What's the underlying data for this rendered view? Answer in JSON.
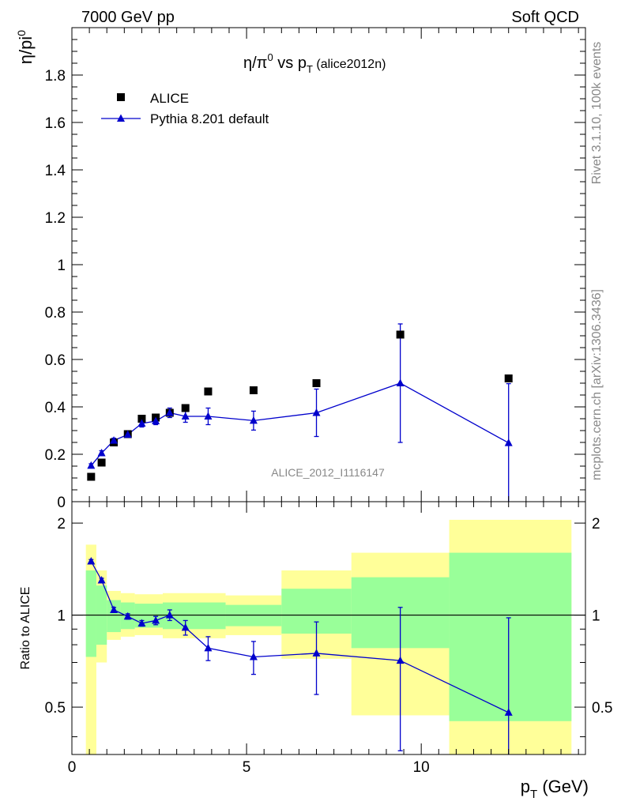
{
  "header": {
    "left": "7000 GeV pp",
    "right": "Soft QCD"
  },
  "side_text": {
    "rivet": "Rivet 3.1.10,  100k events",
    "mcplots": "mcplots.cern.ch [arXiv:1306.3436]"
  },
  "colors": {
    "data": "#000000",
    "mc": "#0000cc",
    "band_inner": "#99ff99",
    "band_outer": "#ffff99"
  },
  "chart_data": [
    {
      "type": "scatter",
      "title": {
        "main_a": "η/π",
        "sup": "0",
        "main_b": " vs p",
        "sub": "T",
        "tag": " (alice2012n)"
      },
      "watermark": "ALICE_2012_I1116147",
      "ylabel": {
        "base": "η/pi",
        "sup": "0"
      },
      "xlim": [
        0,
        14.7
      ],
      "ylim": [
        0,
        2.0
      ],
      "yticks": [
        0,
        0.2,
        0.4,
        0.6,
        0.8,
        1,
        1.2,
        1.4,
        1.6,
        1.8
      ],
      "ytick_labels": [
        "0",
        "0.2",
        "0.4",
        "0.6",
        "0.8",
        "1",
        "1.2",
        "1.4",
        "1.6",
        "1.8"
      ],
      "legend": {
        "placement": "top-left",
        "data_label": "ALICE",
        "mc_label": "Pythia 8.201 default"
      },
      "series": [
        {
          "name": "ALICE",
          "marker": "square",
          "x": [
            0.55,
            0.85,
            1.2,
            1.6,
            2.0,
            2.4,
            2.8,
            3.25,
            3.9,
            5.2,
            7.0,
            9.4,
            12.5
          ],
          "y": [
            0.105,
            0.165,
            0.25,
            0.285,
            0.35,
            0.355,
            0.375,
            0.395,
            0.465,
            0.47,
            0.5,
            0.705,
            0.52
          ]
        },
        {
          "name": "Pythia 8.201 default",
          "marker": "triangle",
          "x": [
            0.55,
            0.85,
            1.2,
            1.6,
            2.0,
            2.4,
            2.8,
            3.25,
            3.9,
            5.2,
            7.0,
            9.4,
            12.5
          ],
          "y": [
            0.152,
            0.205,
            0.258,
            0.283,
            0.33,
            0.34,
            0.375,
            0.36,
            0.36,
            0.342,
            0.375,
            0.5,
            0.248
          ],
          "yerr": [
            0.008,
            0.01,
            0.01,
            0.012,
            0.015,
            0.015,
            0.02,
            0.025,
            0.035,
            0.04,
            0.1,
            0.25,
            0.25
          ]
        }
      ]
    },
    {
      "type": "area",
      "ylabel": "Ratio to ALICE",
      "xlabel": {
        "base": "p",
        "sub": "T",
        "unit": " (GeV)"
      },
      "xlim": [
        0,
        14.7
      ],
      "ylim": [
        0.35,
        2.35
      ],
      "xticks": [
        0,
        5,
        10
      ],
      "xtick_labels": [
        "0",
        "5",
        "10"
      ],
      "yticks": [
        0.5,
        1,
        2
      ],
      "ytick_labels": [
        "0.5",
        "1",
        "2"
      ],
      "bands": [
        {
          "x0": 0.4,
          "x1": 0.7,
          "in_lo": 0.73,
          "in_hi": 1.4,
          "out_lo": 0.35,
          "out_hi": 1.7
        },
        {
          "x0": 0.7,
          "x1": 1.0,
          "in_lo": 0.8,
          "in_hi": 1.25,
          "out_lo": 0.7,
          "out_hi": 1.4
        },
        {
          "x0": 1.0,
          "x1": 1.4,
          "in_lo": 0.88,
          "in_hi": 1.12,
          "out_lo": 0.83,
          "out_hi": 1.2
        },
        {
          "x0": 1.4,
          "x1": 1.8,
          "in_lo": 0.9,
          "in_hi": 1.1,
          "out_lo": 0.85,
          "out_hi": 1.18
        },
        {
          "x0": 1.8,
          "x1": 2.6,
          "in_lo": 0.91,
          "in_hi": 1.09,
          "out_lo": 0.86,
          "out_hi": 1.17
        },
        {
          "x0": 2.6,
          "x1": 4.4,
          "in_lo": 0.9,
          "in_hi": 1.1,
          "out_lo": 0.84,
          "out_hi": 1.18
        },
        {
          "x0": 4.4,
          "x1": 6.0,
          "in_lo": 0.92,
          "in_hi": 1.08,
          "out_lo": 0.86,
          "out_hi": 1.16
        },
        {
          "x0": 6.0,
          "x1": 8.0,
          "in_lo": 0.87,
          "in_hi": 1.22,
          "out_lo": 0.72,
          "out_hi": 1.4
        },
        {
          "x0": 8.0,
          "x1": 10.8,
          "in_lo": 0.78,
          "in_hi": 1.33,
          "out_lo": 0.47,
          "out_hi": 1.6
        },
        {
          "x0": 10.8,
          "x1": 14.3,
          "in_lo": 0.45,
          "in_hi": 1.6,
          "out_lo": 0.35,
          "out_hi": 2.05
        }
      ],
      "series": [
        {
          "name": "Pythia 8.201 default",
          "x": [
            0.55,
            0.85,
            1.2,
            1.6,
            2.0,
            2.4,
            2.8,
            3.25,
            3.9,
            5.2,
            7.0,
            9.4,
            12.5
          ],
          "y": [
            1.5,
            1.3,
            1.04,
            0.99,
            0.94,
            0.96,
            1.0,
            0.91,
            0.78,
            0.73,
            0.75,
            0.71,
            0.48
          ],
          "yerr": [
            0.02,
            0.02,
            0.02,
            0.02,
            0.02,
            0.03,
            0.04,
            0.05,
            0.07,
            0.09,
            0.2,
            0.35,
            0.5
          ]
        }
      ]
    }
  ]
}
